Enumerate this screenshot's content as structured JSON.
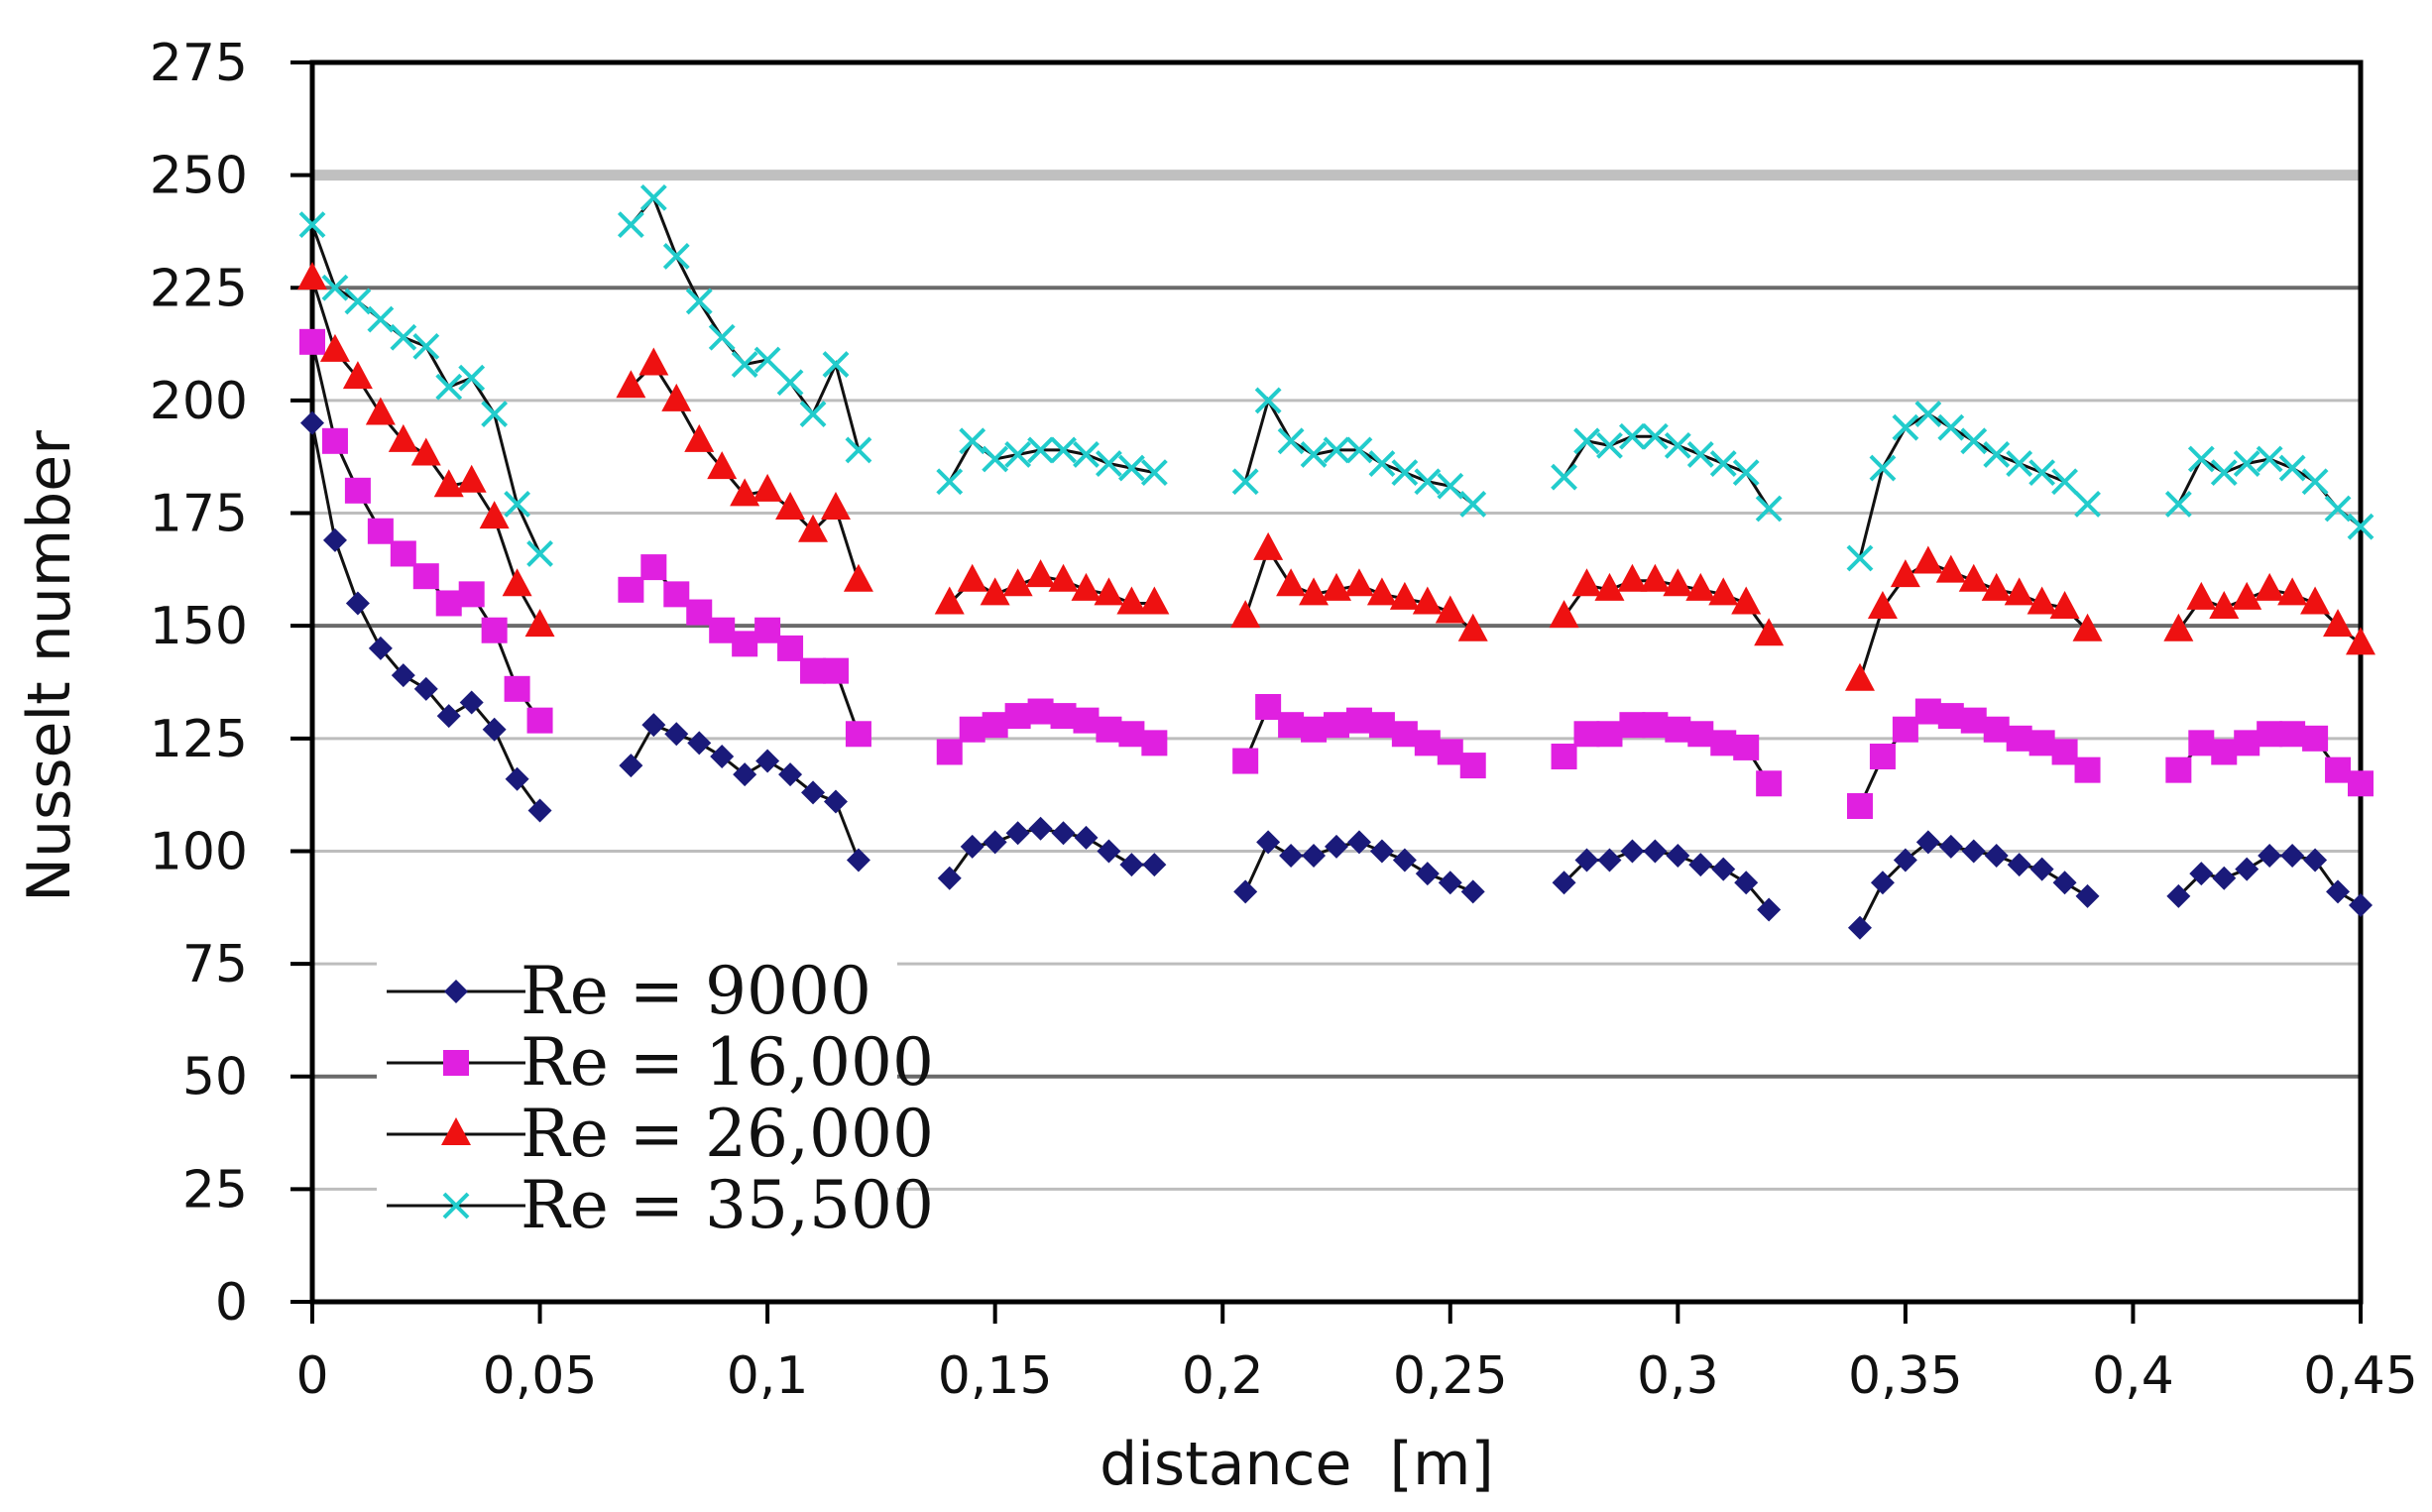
{
  "chart_data": {
    "type": "line",
    "title": "",
    "xlabel": "distance  [m]",
    "ylabel": "Nusselt number",
    "xlim": [
      0,
      0.45
    ],
    "ylim": [
      0,
      275
    ],
    "x_ticks": [
      0,
      0.05,
      0.1,
      0.15,
      0.2,
      0.25,
      0.3,
      0.35,
      0.4,
      0.45
    ],
    "x_tick_labels": [
      "0",
      "0,05",
      "0,1",
      "0,15",
      "0,2",
      "0,25",
      "0,3",
      "0,35",
      "0,4",
      "0,45"
    ],
    "y_ticks": [
      0,
      25,
      50,
      75,
      100,
      125,
      150,
      175,
      200,
      225,
      250,
      275
    ],
    "y_tick_labels": [
      "0",
      "25",
      "50",
      "75",
      "100",
      "125",
      "150",
      "175",
      "200",
      "225",
      "250",
      "275"
    ],
    "grid": true,
    "legend_position": "bottom-left",
    "series": [
      {
        "name": "Re = 9000",
        "color": "#1a1a7a",
        "marker": "diamond",
        "segments": [
          {
            "x": [
              0,
              0.005,
              0.01,
              0.015,
              0.02,
              0.025,
              0.03,
              0.035,
              0.04,
              0.045,
              0.05
            ],
            "y": [
              195,
              169,
              155,
              145,
              139,
              136,
              130,
              133,
              127,
              116,
              109
            ]
          },
          {
            "x": [
              0.07,
              0.075,
              0.08,
              0.085,
              0.09,
              0.095,
              0.1,
              0.105,
              0.11,
              0.115,
              0.12
            ],
            "y": [
              119,
              128,
              126,
              124,
              121,
              117,
              120,
              117,
              113,
              111,
              98
            ]
          },
          {
            "x": [
              0.14,
              0.145,
              0.15,
              0.155,
              0.16,
              0.165,
              0.17,
              0.175,
              0.18,
              0.185
            ],
            "y": [
              94,
              101,
              102,
              104,
              105,
              104,
              103,
              100,
              97,
              97
            ]
          },
          {
            "x": [
              0.205,
              0.21,
              0.215,
              0.22,
              0.225,
              0.23,
              0.235,
              0.24,
              0.245,
              0.25,
              0.255
            ],
            "y": [
              91,
              102,
              99,
              99,
              101,
              102,
              100,
              98,
              95,
              93,
              91
            ]
          },
          {
            "x": [
              0.275,
              0.28,
              0.285,
              0.29,
              0.295,
              0.3,
              0.305,
              0.31,
              0.315,
              0.32
            ],
            "y": [
              93,
              98,
              98,
              100,
              100,
              99,
              97,
              96,
              93,
              87
            ]
          },
          {
            "x": [
              0.34,
              0.345,
              0.35,
              0.355,
              0.36,
              0.365,
              0.37,
              0.375,
              0.38,
              0.385,
              0.39
            ],
            "y": [
              83,
              93,
              98,
              102,
              101,
              100,
              99,
              97,
              96,
              93,
              90
            ]
          },
          {
            "x": [
              0.41,
              0.415,
              0.42,
              0.425,
              0.43,
              0.435,
              0.44,
              0.445,
              0.45
            ],
            "y": [
              90,
              95,
              94,
              96,
              99,
              99,
              98,
              91,
              88
            ]
          }
        ]
      },
      {
        "name": "Re = 16,000",
        "color": "#e020e0",
        "marker": "square",
        "segments": [
          {
            "x": [
              0,
              0.005,
              0.01,
              0.015,
              0.02,
              0.025,
              0.03,
              0.035,
              0.04,
              0.045,
              0.05
            ],
            "y": [
              213,
              191,
              180,
              171,
              166,
              161,
              155,
              157,
              149,
              136,
              129
            ]
          },
          {
            "x": [
              0.07,
              0.075,
              0.08,
              0.085,
              0.09,
              0.095,
              0.1,
              0.105,
              0.11,
              0.115,
              0.12
            ],
            "y": [
              158,
              163,
              157,
              153,
              149,
              146,
              149,
              145,
              140,
              140,
              126
            ]
          },
          {
            "x": [
              0.14,
              0.145,
              0.15,
              0.155,
              0.16,
              0.165,
              0.17,
              0.175,
              0.18,
              0.185
            ],
            "y": [
              122,
              127,
              128,
              130,
              131,
              130,
              129,
              127,
              126,
              124
            ]
          },
          {
            "x": [
              0.205,
              0.21,
              0.215,
              0.22,
              0.225,
              0.23,
              0.235,
              0.24,
              0.245,
              0.25,
              0.255
            ],
            "y": [
              120,
              132,
              128,
              127,
              128,
              129,
              128,
              126,
              124,
              122,
              119
            ]
          },
          {
            "x": [
              0.275,
              0.28,
              0.285,
              0.29,
              0.295,
              0.3,
              0.305,
              0.31,
              0.315,
              0.32
            ],
            "y": [
              121,
              126,
              126,
              128,
              128,
              127,
              126,
              124,
              123,
              115
            ]
          },
          {
            "x": [
              0.34,
              0.345,
              0.35,
              0.355,
              0.36,
              0.365,
              0.37,
              0.375,
              0.38,
              0.385,
              0.39
            ],
            "y": [
              110,
              121,
              127,
              131,
              130,
              129,
              127,
              125,
              124,
              122,
              118
            ]
          },
          {
            "x": [
              0.41,
              0.415,
              0.42,
              0.425,
              0.43,
              0.435,
              0.44,
              0.445,
              0.45
            ],
            "y": [
              118,
              124,
              122,
              124,
              126,
              126,
              125,
              118,
              115
            ]
          }
        ]
      },
      {
        "name": "Re = 26,000",
        "color": "#ee1111",
        "marker": "triangle",
        "segments": [
          {
            "x": [
              0,
              0.005,
              0.01,
              0.015,
              0.02,
              0.025,
              0.03,
              0.035,
              0.04,
              0.045,
              0.05
            ],
            "y": [
              227,
              211,
              205,
              197,
              191,
              188,
              181,
              182,
              174,
              159,
              150
            ]
          },
          {
            "x": [
              0.07,
              0.075,
              0.08,
              0.085,
              0.09,
              0.095,
              0.1,
              0.105,
              0.11,
              0.115,
              0.12
            ],
            "y": [
              203,
              208,
              200,
              191,
              185,
              179,
              180,
              176,
              171,
              176,
              160
            ]
          },
          {
            "x": [
              0.14,
              0.145,
              0.15,
              0.155,
              0.16,
              0.165,
              0.17,
              0.175,
              0.18,
              0.185
            ],
            "y": [
              155,
              160,
              157,
              159,
              161,
              160,
              158,
              157,
              155,
              155
            ]
          },
          {
            "x": [
              0.205,
              0.21,
              0.215,
              0.22,
              0.225,
              0.23,
              0.235,
              0.24,
              0.245,
              0.25,
              0.255
            ],
            "y": [
              152,
              167,
              159,
              157,
              158,
              159,
              157,
              156,
              155,
              153,
              149
            ]
          },
          {
            "x": [
              0.275,
              0.28,
              0.285,
              0.29,
              0.295,
              0.3,
              0.305,
              0.31,
              0.315,
              0.32
            ],
            "y": [
              152,
              159,
              158,
              160,
              160,
              159,
              158,
              157,
              155,
              148
            ]
          },
          {
            "x": [
              0.34,
              0.345,
              0.35,
              0.355,
              0.36,
              0.365,
              0.37,
              0.375,
              0.38,
              0.385,
              0.39
            ],
            "y": [
              138,
              154,
              161,
              164,
              162,
              160,
              158,
              157,
              155,
              154,
              149
            ]
          },
          {
            "x": [
              0.41,
              0.415,
              0.42,
              0.425,
              0.43,
              0.435,
              0.44,
              0.445,
              0.45
            ],
            "y": [
              149,
              156,
              154,
              156,
              158,
              157,
              155,
              150,
              146
            ]
          }
        ]
      },
      {
        "name": "Re = 35,500",
        "color": "#22cccc",
        "marker": "x",
        "segments": [
          {
            "x": [
              0,
              0.005,
              0.01,
              0.015,
              0.02,
              0.025,
              0.03,
              0.035,
              0.04,
              0.045,
              0.05
            ],
            "y": [
              239,
              225,
              222,
              218,
              214,
              212,
              203,
              205,
              197,
              177,
              166
            ]
          },
          {
            "x": [
              0.07,
              0.075,
              0.08,
              0.085,
              0.09,
              0.095,
              0.1,
              0.105,
              0.11,
              0.115,
              0.12
            ],
            "y": [
              239,
              245,
              232,
              222,
              214,
              208,
              209,
              204,
              197,
              208,
              189
            ]
          },
          {
            "x": [
              0.14,
              0.145,
              0.15,
              0.155,
              0.16,
              0.165,
              0.17,
              0.175,
              0.18,
              0.185
            ],
            "y": [
              182,
              191,
              187,
              188,
              189,
              189,
              188,
              186,
              185,
              184
            ]
          },
          {
            "x": [
              0.205,
              0.21,
              0.215,
              0.22,
              0.225,
              0.23,
              0.235,
              0.24,
              0.245,
              0.25,
              0.255
            ],
            "y": [
              182,
              200,
              191,
              188,
              189,
              189,
              186,
              184,
              182,
              181,
              177
            ]
          },
          {
            "x": [
              0.275,
              0.28,
              0.285,
              0.29,
              0.295,
              0.3,
              0.305,
              0.31,
              0.315,
              0.32
            ],
            "y": [
              183,
              191,
              190,
              192,
              192,
              190,
              188,
              186,
              184,
              176
            ]
          },
          {
            "x": [
              0.34,
              0.345,
              0.35,
              0.355,
              0.36,
              0.365,
              0.37,
              0.375,
              0.38,
              0.385,
              0.39
            ],
            "y": [
              165,
              185,
              194,
              197,
              194,
              191,
              188,
              186,
              184,
              182,
              177
            ]
          },
          {
            "x": [
              0.41,
              0.415,
              0.42,
              0.425,
              0.43,
              0.435,
              0.44,
              0.445,
              0.45
            ],
            "y": [
              177,
              187,
              184,
              186,
              187,
              185,
              182,
              176,
              172
            ]
          }
        ]
      }
    ]
  }
}
